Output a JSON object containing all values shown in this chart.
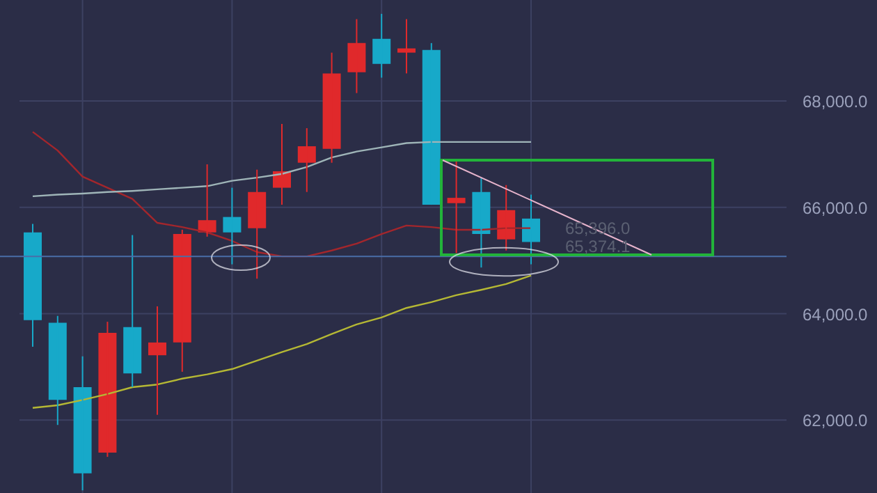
{
  "chart_data": {
    "type": "candlestick",
    "categories": [
      null,
      null,
      null,
      null,
      null,
      null,
      null,
      null,
      null,
      null,
      null,
      null,
      null,
      null,
      null,
      null,
      null,
      null,
      null,
      null,
      null
    ],
    "ohlc": [
      [
        65530,
        65690,
        63380,
        63880
      ],
      [
        63830,
        63960,
        61910,
        62380
      ],
      [
        62620,
        63200,
        60680,
        61000
      ],
      [
        61390,
        63850,
        61310,
        63640
      ],
      [
        63750,
        65480,
        62620,
        62880
      ],
      [
        63220,
        64140,
        62100,
        63460
      ],
      [
        63460,
        65580,
        62910,
        65500
      ],
      [
        65530,
        66810,
        65450,
        65760
      ],
      [
        65820,
        66370,
        64930,
        65530
      ],
      [
        65610,
        66710,
        64660,
        66290
      ],
      [
        66370,
        67570,
        66050,
        66680
      ],
      [
        66840,
        67490,
        66290,
        67150
      ],
      [
        67100,
        68910,
        66840,
        68520
      ],
      [
        68540,
        69540,
        68150,
        69090
      ],
      [
        69170,
        69640,
        68440,
        68700
      ],
      [
        68910,
        69540,
        68520,
        68990
      ],
      [
        68960,
        69090,
        66050,
        66050
      ],
      [
        66080,
        66890,
        65140,
        66180
      ],
      [
        66290,
        66550,
        64870,
        65500
      ],
      [
        65400,
        66420,
        65190,
        65950
      ],
      [
        65790,
        66240,
        64930,
        65350
      ]
    ],
    "colors": [
      "#17a9c9",
      "#17a9c9",
      "#17a9c9",
      "#e0292b",
      "#17a9c9",
      "#e0292b",
      "#e0292b",
      "#e0292b",
      "#17a9c9",
      "#e0292b",
      "#e0292b",
      "#e0292b",
      "#e0292b",
      "#e0292b",
      "#17a9c9",
      "#e0292b",
      "#17a9c9",
      "#e0292b",
      "#17a9c9",
      "#e0292b",
      "#17a9c9"
    ],
    "series": [
      {
        "type": "line",
        "color": "#a3262c",
        "values": [
          67420,
          67070,
          66580,
          66370,
          66160,
          65710,
          65630,
          65530,
          65370,
          65160,
          65080,
          65080,
          65190,
          65320,
          65500,
          65660,
          65630,
          65580,
          65580,
          65610,
          65610
        ]
      },
      {
        "type": "line",
        "color": "#9fb5b8",
        "values": [
          66210,
          66240,
          66260,
          66290,
          66310,
          66340,
          66370,
          66400,
          66500,
          66560,
          66630,
          66760,
          66940,
          67050,
          67130,
          67210,
          67230,
          67230,
          67230,
          67230,
          67230
        ]
      },
      {
        "type": "line",
        "color": "#b5b834",
        "values": [
          62230,
          62280,
          62380,
          62490,
          62620,
          62670,
          62780,
          62860,
          62960,
          63120,
          63280,
          63430,
          63620,
          63800,
          63930,
          64110,
          64220,
          64350,
          64450,
          64560,
          64720
        ]
      }
    ],
    "ylim": [
      60630,
      69900
    ],
    "yticks": [
      {
        "value": 62000,
        "label": "62,000.0"
      },
      {
        "value": 64000,
        "label": "64,000.0"
      },
      {
        "value": 66000,
        "label": "66,000.0"
      },
      {
        "value": 68000,
        "label": "68,000.0"
      }
    ],
    "tick_labels": "y",
    "grid": true,
    "ref_lines": [
      {
        "axis": "y",
        "value": 65080,
        "color": "#4a6ea8"
      }
    ],
    "annotations": [
      "65,396.0",
      "65,374.1"
    ]
  }
}
